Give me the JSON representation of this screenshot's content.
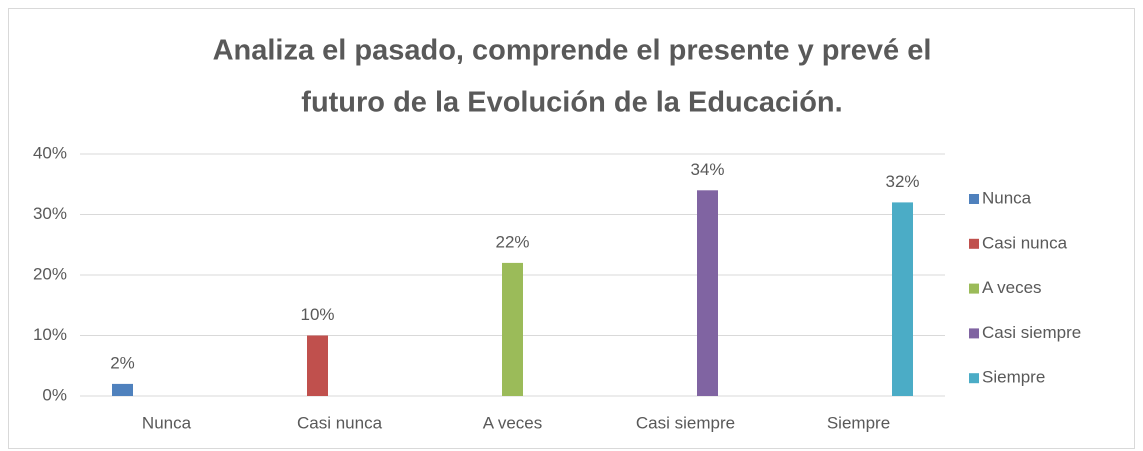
{
  "chart_data": {
    "type": "bar",
    "title": [
      "Analiza el pasado, comprende el presente y prevé el",
      "futuro de la Evolución de la Educación."
    ],
    "categories": [
      "Nunca",
      "Casi nunca",
      "A veces",
      "Casi siempre",
      "Siempre"
    ],
    "series": [
      {
        "name": "Nunca",
        "color": "#4f81bd",
        "values": [
          2,
          null,
          null,
          null,
          null
        ],
        "value_labels": [
          "2%",
          null,
          null,
          null,
          null
        ]
      },
      {
        "name": "Casi nunca",
        "color": "#c0504d",
        "values": [
          null,
          10,
          null,
          null,
          null
        ],
        "value_labels": [
          null,
          "10%",
          null,
          null,
          null
        ]
      },
      {
        "name": "A veces",
        "color": "#9bbb59",
        "values": [
          null,
          null,
          22,
          null,
          null
        ],
        "value_labels": [
          null,
          null,
          "22%",
          null,
          null
        ]
      },
      {
        "name": "Casi siempre",
        "color": "#8064a2",
        "values": [
          null,
          null,
          null,
          34,
          null
        ],
        "value_labels": [
          null,
          null,
          null,
          "34%",
          null
        ]
      },
      {
        "name": "Siempre",
        "color": "#4bacc6",
        "values": [
          null,
          null,
          null,
          null,
          32
        ],
        "value_labels": [
          null,
          null,
          null,
          null,
          "32%"
        ]
      }
    ],
    "ylim": [
      0,
      40
    ],
    "yticks": [
      {
        "value": 0,
        "label": "0%"
      },
      {
        "value": 10,
        "label": "10%"
      },
      {
        "value": 20,
        "label": "20%"
      },
      {
        "value": 30,
        "label": "30%"
      },
      {
        "value": 40,
        "label": "40%"
      }
    ],
    "grid": true,
    "legend": "right"
  }
}
